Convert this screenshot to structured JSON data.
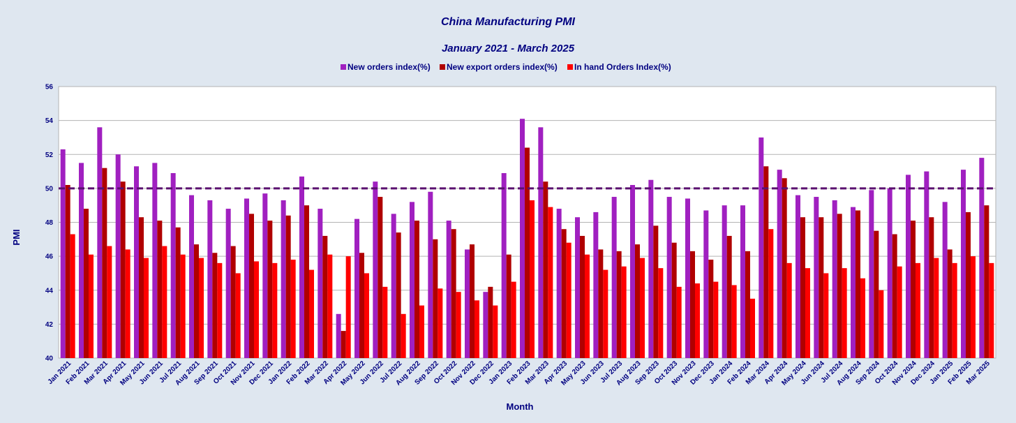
{
  "chart_data": {
    "type": "bar",
    "title": "China Manufacturing PMI",
    "subtitle": "January 2021 - March 2025",
    "xlabel": "Month",
    "ylabel": "PMI",
    "ylim": [
      40,
      56
    ],
    "yticks": [
      40,
      42,
      44,
      46,
      48,
      50,
      52,
      54,
      56
    ],
    "grid": true,
    "legend_position": "top-center",
    "reference_line": {
      "value": 50,
      "color": "#5b1070",
      "style": "dashed"
    },
    "categories": [
      "Jan 2021",
      "Feb 2021",
      "Mar 2021",
      "Apr 2021",
      "May 2021",
      "Jun 2021",
      "Jul 2021",
      "Aug 2021",
      "Sep 2021",
      "Oct 2021",
      "Nov 2021",
      "Dec 2021",
      "Jan 2022",
      "Feb 2022",
      "Mar 2022",
      "Apr 2022",
      "May 2022",
      "Jun 2022",
      "Jul 2022",
      "Aug 2022",
      "Sep 2022",
      "Oct 2022",
      "Nov 2022",
      "Dec 2022",
      "Jan 2023",
      "Feb 2023",
      "Mar 2023",
      "Apr 2023",
      "May 2023",
      "Jun 2023",
      "Jul 2023",
      "Aug 2023",
      "Sep 2023",
      "Oct 2023",
      "Nov 2023",
      "Dec 2023",
      "Jan 2024",
      "Feb 2024",
      "Mar 2024",
      "Apr 2024",
      "May 2024",
      "Jun 2024",
      "Jul 2024",
      "Aug 2024",
      "Sep 2024",
      "Oct 2024",
      "Nov 2024",
      "Dec 2024",
      "Jan 2025",
      "Feb 2025",
      "Mar 2025"
    ],
    "series": [
      {
        "name": "New orders index(%)",
        "color": "#a020c0",
        "values": [
          52.3,
          51.5,
          53.6,
          52.0,
          51.3,
          51.5,
          50.9,
          49.6,
          49.3,
          48.8,
          49.4,
          49.7,
          49.3,
          50.7,
          48.8,
          42.6,
          48.2,
          50.4,
          48.5,
          49.2,
          49.8,
          48.1,
          46.4,
          43.9,
          50.9,
          54.1,
          53.6,
          48.8,
          48.3,
          48.6,
          49.5,
          50.2,
          50.5,
          49.5,
          49.4,
          48.7,
          49.0,
          49.0,
          53.0,
          51.1,
          49.6,
          49.5,
          49.3,
          48.9,
          49.9,
          50.0,
          50.8,
          51.0,
          49.2,
          51.1,
          51.8
        ]
      },
      {
        "name": "New export orders index(%)",
        "color": "#b00000",
        "values": [
          50.2,
          48.8,
          51.2,
          50.4,
          48.3,
          48.1,
          47.7,
          46.7,
          46.2,
          46.6,
          48.5,
          48.1,
          48.4,
          49.0,
          47.2,
          41.6,
          46.2,
          49.5,
          47.4,
          48.1,
          47.0,
          47.6,
          46.7,
          44.2,
          46.1,
          52.4,
          50.4,
          47.6,
          47.2,
          46.4,
          46.3,
          46.7,
          47.8,
          46.8,
          46.3,
          45.8,
          47.2,
          46.3,
          51.3,
          50.6,
          48.3,
          48.3,
          48.5,
          48.7,
          47.5,
          47.3,
          48.1,
          48.3,
          46.4,
          48.6,
          49.0
        ]
      },
      {
        "name": "In hand Orders Index(%)",
        "color": "#ff0000",
        "values": [
          47.3,
          46.1,
          46.6,
          46.4,
          45.9,
          46.6,
          46.1,
          45.9,
          45.6,
          45.0,
          45.7,
          45.6,
          45.8,
          45.2,
          46.1,
          46.0,
          45.0,
          44.2,
          42.6,
          43.1,
          44.1,
          43.9,
          43.4,
          43.1,
          44.5,
          49.3,
          48.9,
          46.8,
          46.1,
          45.2,
          45.4,
          45.9,
          45.3,
          44.2,
          44.4,
          44.5,
          44.3,
          43.5,
          47.6,
          45.6,
          45.3,
          45.0,
          45.3,
          44.7,
          44.0,
          45.4,
          45.6,
          45.9,
          45.6,
          46.0,
          45.6
        ]
      }
    ]
  }
}
